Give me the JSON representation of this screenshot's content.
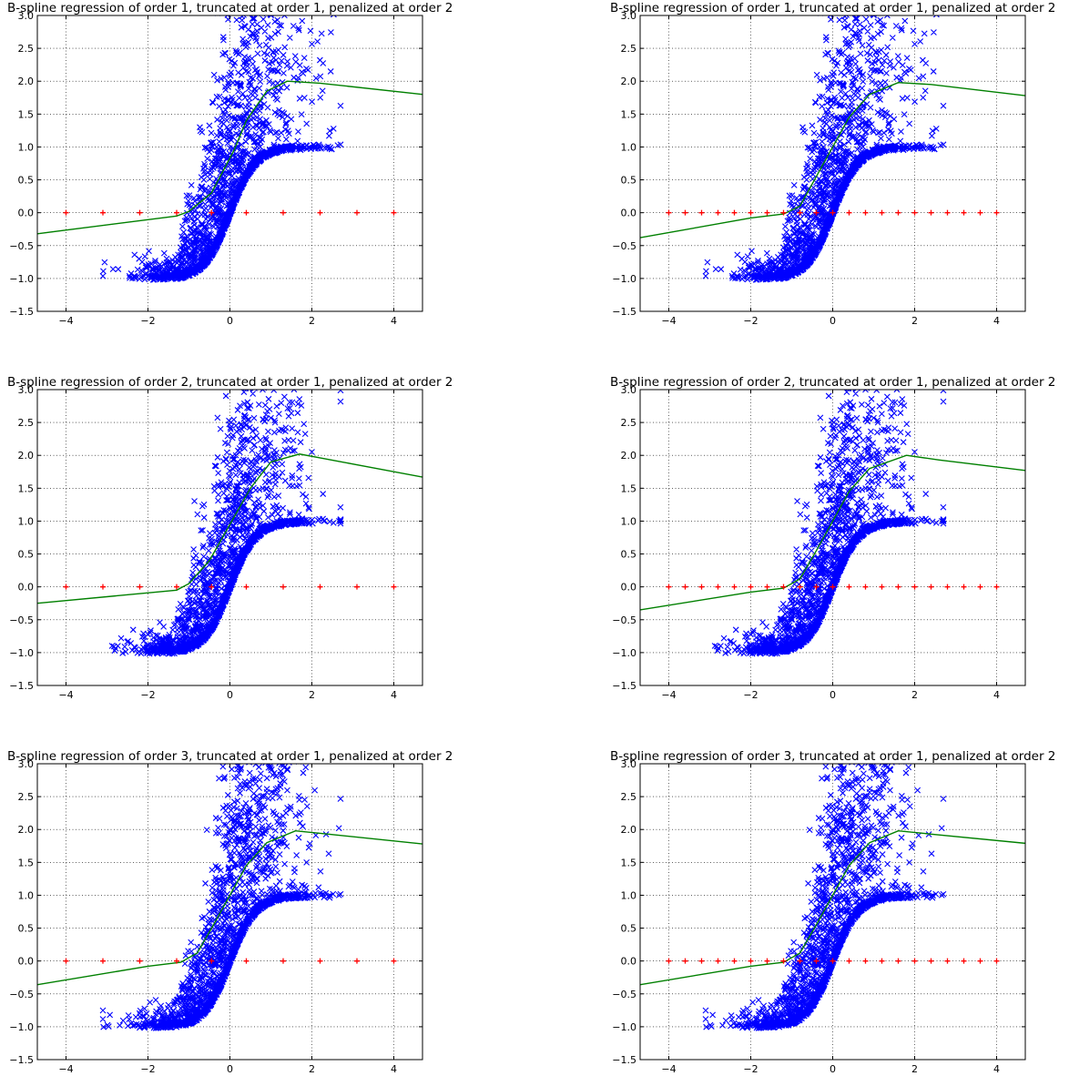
{
  "chart_data": [
    {
      "type": "scatter",
      "title": "B-spline regression of order 1, truncated at order 1, penalized at order 2",
      "xlim": [
        -4.7,
        4.7
      ],
      "ylim": [
        -1.5,
        3.0
      ],
      "grid": true,
      "xticks": [
        "−4",
        "−2",
        "0",
        "2",
        "4"
      ],
      "yticks": [
        "−1.5",
        "−1.0",
        "−0.5",
        "0.0",
        "0.5",
        "1.0",
        "1.5",
        "2.0",
        "2.5",
        "3.0"
      ],
      "knots": [
        -4,
        -3.1,
        -2.2,
        -1.3,
        -0.45,
        0.4,
        1.3,
        2.2,
        3.1,
        4
      ],
      "fit": [
        [
          -4.7,
          -0.32
        ],
        [
          -1.3,
          -0.05
        ],
        [
          -1.0,
          0.02
        ],
        [
          -0.45,
          0.3
        ],
        [
          0.1,
          0.95
        ],
        [
          0.4,
          1.4
        ],
        [
          0.9,
          1.85
        ],
        [
          1.4,
          2.0
        ],
        [
          2.2,
          1.97
        ],
        [
          4.7,
          1.8
        ]
      ],
      "series_colors": {
        "points": "#0000ff",
        "fit": "#008000",
        "knots": "#ff0000"
      }
    },
    {
      "type": "scatter",
      "title": "B-spline regression of order 1, truncated at order 1, penalized at order 2",
      "xlim": [
        -4.7,
        4.7
      ],
      "ylim": [
        -1.5,
        3.0
      ],
      "grid": true,
      "xticks": [
        "−4",
        "−2",
        "0",
        "2",
        "4"
      ],
      "yticks": [
        "−1.5",
        "−1.0",
        "−0.5",
        "0.0",
        "0.5",
        "1.0",
        "1.5",
        "2.0",
        "2.5",
        "3.0"
      ],
      "knots": [
        -4,
        -3.6,
        -3.2,
        -2.8,
        -2.4,
        -2.0,
        -1.6,
        -1.2,
        -0.8,
        -0.4,
        0,
        0.4,
        0.8,
        1.2,
        1.6,
        2.0,
        2.4,
        2.8,
        3.2,
        3.6,
        4
      ],
      "fit": [
        [
          -4.7,
          -0.38
        ],
        [
          -2.0,
          -0.08
        ],
        [
          -1.2,
          -0.02
        ],
        [
          -0.8,
          0.1
        ],
        [
          -0.4,
          0.55
        ],
        [
          0.0,
          1.0
        ],
        [
          0.4,
          1.45
        ],
        [
          0.9,
          1.8
        ],
        [
          1.6,
          1.98
        ],
        [
          2.4,
          1.95
        ],
        [
          4.7,
          1.78
        ]
      ],
      "series_colors": {
        "points": "#0000ff",
        "fit": "#008000",
        "knots": "#ff0000"
      }
    },
    {
      "type": "scatter",
      "title": "B-spline regression of order 2, truncated at order 1, penalized at order 2",
      "xlim": [
        -4.7,
        4.7
      ],
      "ylim": [
        -1.5,
        3.0
      ],
      "grid": true,
      "xticks": [
        "−4",
        "−2",
        "0",
        "2",
        "4"
      ],
      "yticks": [
        "−1.5",
        "−1.0",
        "−0.5",
        "0.0",
        "0.5",
        "1.0",
        "1.5",
        "2.0",
        "2.5",
        "3.0"
      ],
      "knots": [
        -4,
        -3.1,
        -2.2,
        -1.3,
        -0.45,
        0.4,
        1.3,
        2.2,
        3.1,
        4
      ],
      "fit": [
        [
          -4.7,
          -0.25
        ],
        [
          -1.3,
          -0.05
        ],
        [
          -1.0,
          0.05
        ],
        [
          -0.5,
          0.4
        ],
        [
          0.0,
          0.95
        ],
        [
          0.5,
          1.5
        ],
        [
          1.0,
          1.9
        ],
        [
          1.7,
          2.02
        ],
        [
          2.3,
          1.95
        ],
        [
          4.7,
          1.67
        ]
      ],
      "series_colors": {
        "points": "#0000ff",
        "fit": "#008000",
        "knots": "#ff0000"
      }
    },
    {
      "type": "scatter",
      "title": "B-spline regression of order 2, truncated at order 1, penalized at order 2",
      "xlim": [
        -4.7,
        4.7
      ],
      "ylim": [
        -1.5,
        3.0
      ],
      "grid": true,
      "xticks": [
        "−4",
        "−2",
        "0",
        "2",
        "4"
      ],
      "yticks": [
        "−1.5",
        "−1.0",
        "−0.5",
        "0.0",
        "0.5",
        "1.0",
        "1.5",
        "2.0",
        "2.5",
        "3.0"
      ],
      "knots": [
        -4,
        -3.6,
        -3.2,
        -2.8,
        -2.4,
        -2.0,
        -1.6,
        -1.2,
        -0.8,
        -0.4,
        0,
        0.4,
        0.8,
        1.2,
        1.6,
        2.0,
        2.4,
        2.8,
        3.2,
        3.6,
        4
      ],
      "fit": [
        [
          -4.7,
          -0.35
        ],
        [
          -2.0,
          -0.08
        ],
        [
          -1.2,
          -0.02
        ],
        [
          -0.8,
          0.12
        ],
        [
          -0.4,
          0.55
        ],
        [
          0.0,
          1.0
        ],
        [
          0.4,
          1.45
        ],
        [
          0.9,
          1.8
        ],
        [
          1.8,
          2.0
        ],
        [
          2.6,
          1.93
        ],
        [
          4.7,
          1.77
        ]
      ],
      "series_colors": {
        "points": "#0000ff",
        "fit": "#008000",
        "knots": "#ff0000"
      }
    },
    {
      "type": "scatter",
      "title": "B-spline regression of order 3, truncated at order 1, penalized at order 2",
      "xlim": [
        -4.7,
        4.7
      ],
      "ylim": [
        -1.5,
        3.0
      ],
      "grid": true,
      "xticks": [
        "−4",
        "−2",
        "0",
        "2",
        "4"
      ],
      "yticks": [
        "−1.5",
        "−1.0",
        "−0.5",
        "0.0",
        "0.5",
        "1.0",
        "1.5",
        "2.0",
        "2.5",
        "3.0"
      ],
      "knots": [
        -4,
        -3.1,
        -2.2,
        -1.3,
        -0.45,
        0.4,
        1.3,
        2.2,
        3.1,
        4
      ],
      "fit": [
        [
          -4.7,
          -0.36
        ],
        [
          -2.0,
          -0.08
        ],
        [
          -1.2,
          -0.02
        ],
        [
          -0.8,
          0.12
        ],
        [
          -0.4,
          0.55
        ],
        [
          0.0,
          1.0
        ],
        [
          0.4,
          1.45
        ],
        [
          0.9,
          1.8
        ],
        [
          1.6,
          1.98
        ],
        [
          2.4,
          1.93
        ],
        [
          4.7,
          1.78
        ]
      ],
      "series_colors": {
        "points": "#0000ff",
        "fit": "#008000",
        "knots": "#ff0000"
      }
    },
    {
      "type": "scatter",
      "title": "B-spline regression of order 3, truncated at order 1, penalized at order 2",
      "xlim": [
        -4.7,
        4.7
      ],
      "ylim": [
        -1.5,
        3.0
      ],
      "grid": true,
      "xticks": [
        "−4",
        "−2",
        "0",
        "2",
        "4"
      ],
      "yticks": [
        "−1.5",
        "−1.0",
        "−0.5",
        "0.0",
        "0.5",
        "1.0",
        "1.5",
        "2.0",
        "2.5",
        "3.0"
      ],
      "knots": [
        -4,
        -3.6,
        -3.2,
        -2.8,
        -2.4,
        -2.0,
        -1.6,
        -1.2,
        -0.8,
        -0.4,
        0,
        0.4,
        0.8,
        1.2,
        1.6,
        2.0,
        2.4,
        2.8,
        3.2,
        3.6,
        4
      ],
      "fit": [
        [
          -4.7,
          -0.36
        ],
        [
          -2.0,
          -0.08
        ],
        [
          -1.2,
          -0.02
        ],
        [
          -0.8,
          0.12
        ],
        [
          -0.4,
          0.55
        ],
        [
          0.0,
          1.0
        ],
        [
          0.4,
          1.45
        ],
        [
          0.9,
          1.8
        ],
        [
          1.6,
          1.98
        ],
        [
          2.4,
          1.93
        ],
        [
          4.7,
          1.79
        ]
      ],
      "series_colors": {
        "points": "#0000ff",
        "fit": "#008000",
        "knots": "#ff0000"
      }
    }
  ]
}
